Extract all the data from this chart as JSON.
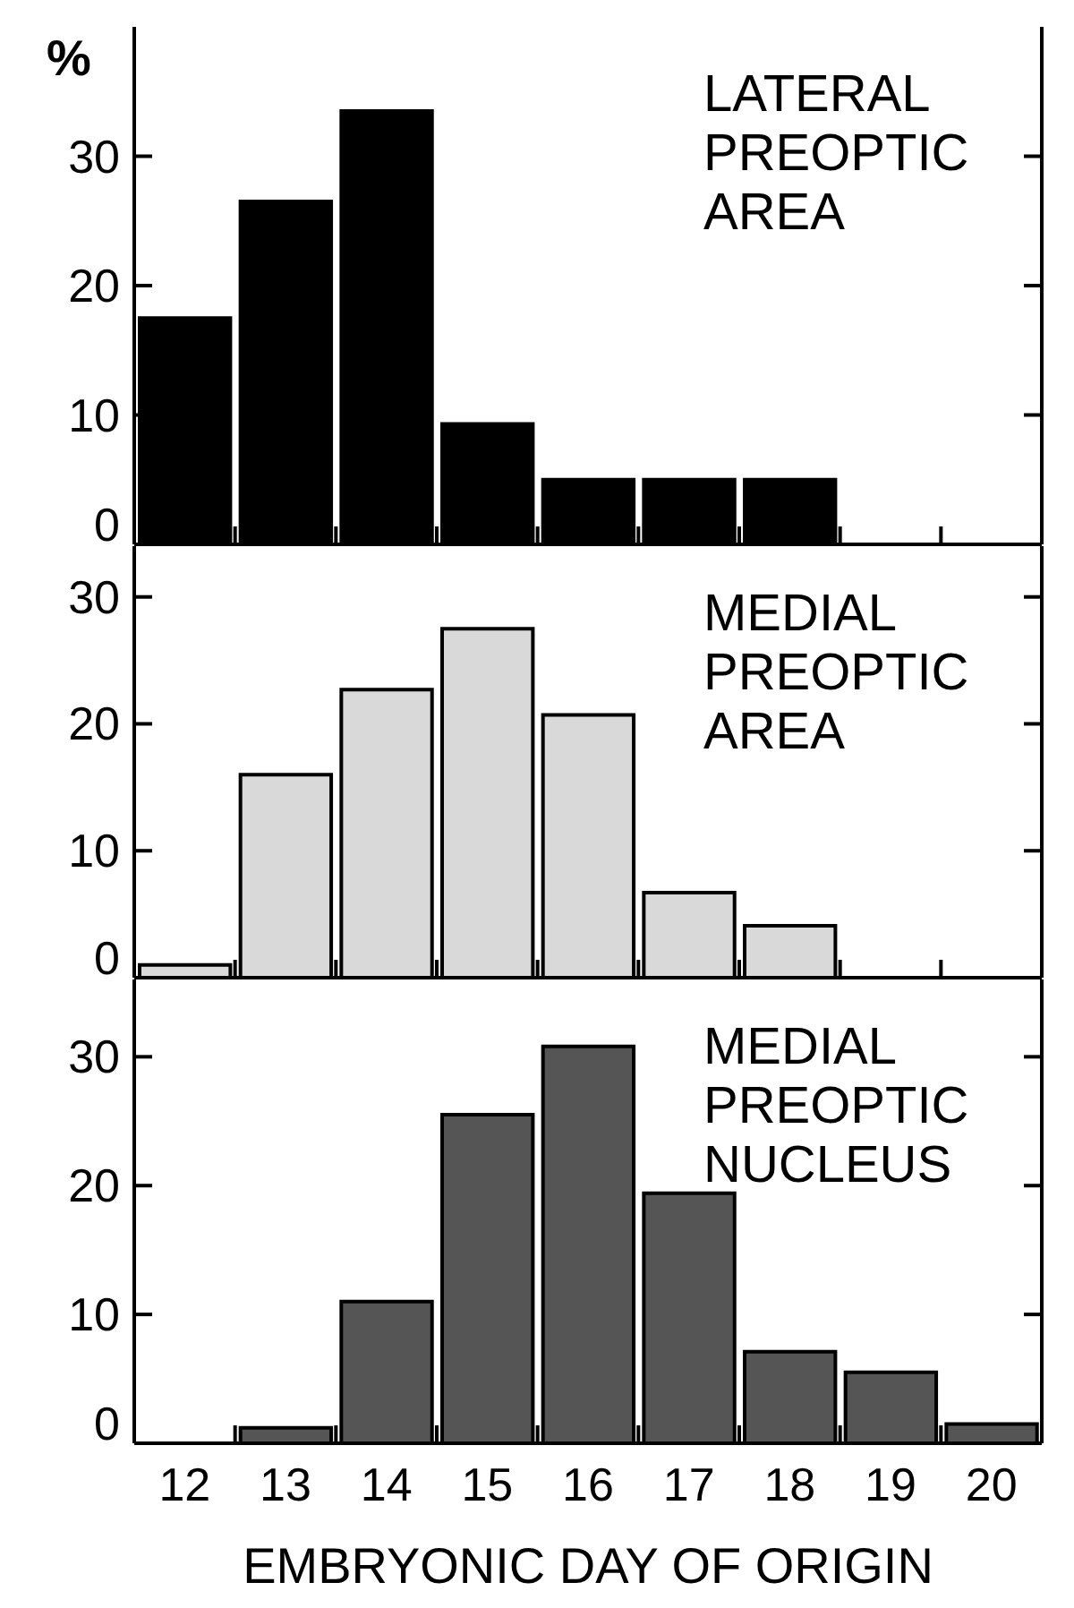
{
  "chart_data": [
    {
      "type": "histogram",
      "title": "LATERAL PREOPTIC AREA",
      "ylabel": "%",
      "bins": [
        11.5,
        12.5,
        13.5,
        14.5,
        15.5,
        16.5,
        17.5,
        18.5,
        19.5,
        20.5
      ],
      "values": [
        17.5,
        26.5,
        33.5,
        9.3,
        5,
        5,
        5,
        0,
        0
      ],
      "color": "#000000",
      "xlim": [
        11.5,
        20.5
      ],
      "xticks": [
        12,
        {
          "value": 12.5,
          "label": null
        },
        13,
        {
          "value": 13.5,
          "label": null
        },
        14,
        {
          "value": 14.5,
          "label": null
        },
        15,
        {
          "value": 15.5,
          "label": null
        },
        16,
        {
          "value": 16.5,
          "label": null
        },
        17,
        {
          "value": 17.5,
          "label": null
        },
        18,
        {
          "value": 18.5,
          "label": null
        },
        19,
        {
          "value": 19.5,
          "label": null
        },
        20
      ],
      "ylim": [
        0,
        40
      ],
      "yticks": [
        0,
        10,
        20,
        30
      ],
      "tick_labels": "y"
    },
    {
      "type": "histogram",
      "title": "MEDIAL PREOPTIC AREA",
      "bins": [
        11.5,
        12.5,
        13.5,
        14.5,
        15.5,
        16.5,
        17.5,
        18.5,
        19.5,
        20.5
      ],
      "values": [
        1,
        16,
        22.7,
        27.5,
        20.7,
        6.7,
        4.1,
        0,
        0
      ],
      "color": "#d9d9d9",
      "xlim": [
        11.5,
        20.5
      ],
      "xticks": [
        12,
        {
          "value": 12.5,
          "label": null
        },
        13,
        {
          "value": 13.5,
          "label": null
        },
        14,
        {
          "value": 14.5,
          "label": null
        },
        15,
        {
          "value": 15.5,
          "label": null
        },
        16,
        {
          "value": 16.5,
          "label": null
        },
        17,
        {
          "value": 17.5,
          "label": null
        },
        18,
        {
          "value": 18.5,
          "label": null
        },
        19,
        {
          "value": 19.5,
          "label": null
        },
        20
      ],
      "ylim": [
        0,
        34
      ],
      "yticks": [
        0,
        10,
        20,
        30
      ],
      "tick_labels": "y"
    },
    {
      "type": "histogram",
      "title": "MEDIAL PREOPTIC NUCLEUS",
      "xlabel": "EMBRYONIC DAY OF ORIGIN",
      "bins": [
        11.5,
        12.5,
        13.5,
        14.5,
        15.5,
        16.5,
        17.5,
        18.5,
        19.5,
        20.5
      ],
      "values": [
        0,
        1.2,
        11,
        25.5,
        30.8,
        19.4,
        7.1,
        5.5,
        1.5
      ],
      "color": "#555555",
      "xlim": [
        11.5,
        20.5
      ],
      "xticks": [
        12,
        {
          "value": 12.5,
          "label": null
        },
        13,
        {
          "value": 13.5,
          "label": null
        },
        14,
        {
          "value": 14.5,
          "label": null
        },
        15,
        {
          "value": 15.5,
          "label": null
        },
        16,
        {
          "value": 16.5,
          "label": null
        },
        17,
        {
          "value": 17.5,
          "label": null
        },
        18,
        {
          "value": 18.5,
          "label": null
        },
        19,
        {
          "value": 19.5,
          "label": null
        },
        20
      ],
      "ylim": [
        0,
        36
      ],
      "yticks": [
        0,
        10,
        20,
        30
      ]
    }
  ]
}
